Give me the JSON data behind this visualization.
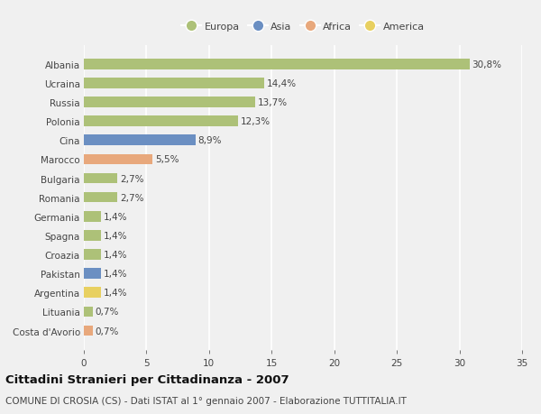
{
  "categories": [
    "Albania",
    "Ucraina",
    "Russia",
    "Polonia",
    "Cina",
    "Marocco",
    "Bulgaria",
    "Romania",
    "Germania",
    "Spagna",
    "Croazia",
    "Pakistan",
    "Argentina",
    "Lituania",
    "Costa d'Avorio"
  ],
  "values": [
    30.8,
    14.4,
    13.7,
    12.3,
    8.9,
    5.5,
    2.7,
    2.7,
    1.4,
    1.4,
    1.4,
    1.4,
    1.4,
    0.7,
    0.7
  ],
  "labels": [
    "30,8%",
    "14,4%",
    "13,7%",
    "12,3%",
    "8,9%",
    "5,5%",
    "2,7%",
    "2,7%",
    "1,4%",
    "1,4%",
    "1,4%",
    "1,4%",
    "1,4%",
    "0,7%",
    "0,7%"
  ],
  "continent": [
    "Europa",
    "Europa",
    "Europa",
    "Europa",
    "Asia",
    "Africa",
    "Europa",
    "Europa",
    "Europa",
    "Europa",
    "Europa",
    "Asia",
    "America",
    "Europa",
    "Africa"
  ],
  "colors": {
    "Europa": "#adc178",
    "Asia": "#6b8fc2",
    "Africa": "#e8a87c",
    "America": "#e8d060"
  },
  "xlim": [
    0,
    35
  ],
  "xticks": [
    0,
    5,
    10,
    15,
    20,
    25,
    30,
    35
  ],
  "title": "Cittadini Stranieri per Cittadinanza - 2007",
  "subtitle": "COMUNE DI CROSIA (CS) - Dati ISTAT al 1° gennaio 2007 - Elaborazione TUTTITALIA.IT",
  "background_color": "#f0f0f0",
  "plot_bg_color": "#f0f0f0",
  "bar_height": 0.55,
  "grid_color": "#ffffff",
  "label_fontsize": 7.5,
  "tick_fontsize": 7.5,
  "title_fontsize": 9.5,
  "subtitle_fontsize": 7.5,
  "legend_order": [
    "Europa",
    "Asia",
    "Africa",
    "America"
  ]
}
